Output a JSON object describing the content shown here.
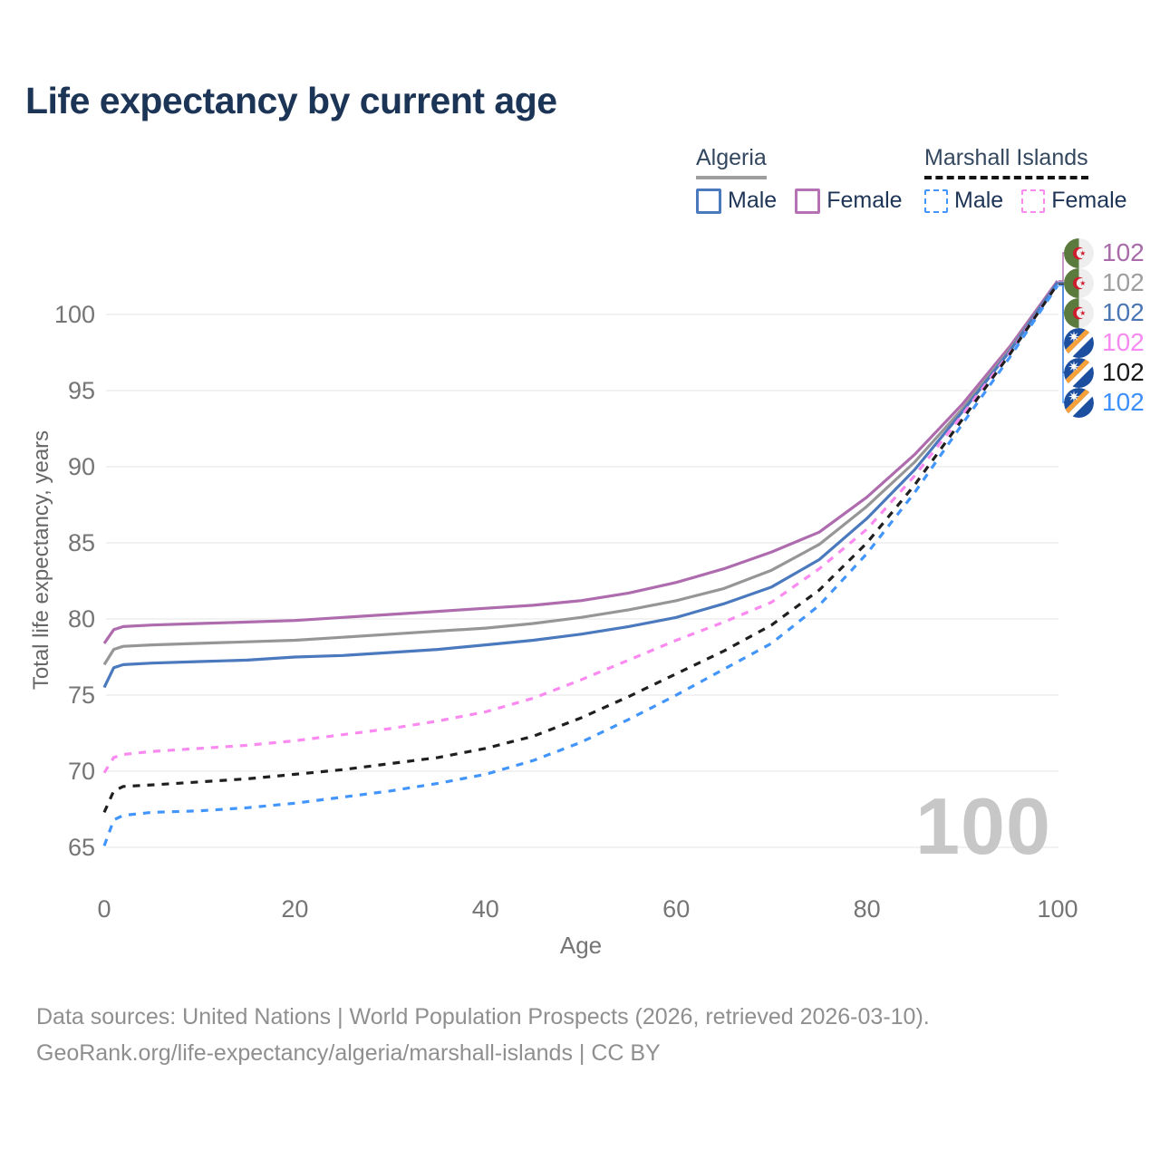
{
  "title": "Life expectancy by current age",
  "watermark": "100",
  "legend": {
    "groups": [
      {
        "label": "Algeria",
        "underline": "solid",
        "underline_color": "#9e9e9e",
        "items": [
          {
            "label": "Male",
            "color": "#4b79bd",
            "dashed": false
          },
          {
            "label": "Female",
            "color": "#b472b4",
            "dashed": false
          }
        ]
      },
      {
        "label": "Marshall Islands",
        "underline": "dashed",
        "underline_color": "#141414",
        "items": [
          {
            "label": "Male",
            "color": "#4195fc",
            "dashed": true
          },
          {
            "label": "Female",
            "color": "#fa8af0",
            "dashed": true
          }
        ]
      }
    ]
  },
  "chart_data": {
    "type": "line",
    "title": "Life expectancy by current age",
    "xlabel": "Age",
    "ylabel": "Total life expectancy, years",
    "xlim": [
      0,
      100
    ],
    "ylim": [
      64,
      102.5
    ],
    "x_ticks": [
      0,
      20,
      40,
      60,
      80,
      100
    ],
    "y_ticks": [
      65,
      70,
      75,
      80,
      85,
      90,
      95,
      100
    ],
    "grid": true,
    "legend_position": "top-right",
    "x": [
      0,
      1,
      2,
      5,
      10,
      15,
      20,
      25,
      30,
      35,
      40,
      45,
      50,
      55,
      60,
      65,
      70,
      75,
      80,
      85,
      90,
      95,
      100
    ],
    "series": [
      {
        "name": "Algeria Female",
        "country": "Algeria",
        "sex": "Female",
        "color": "#ae6cae",
        "label_color": "#a96ba9",
        "dashed": false,
        "flag": "algeria",
        "end_label": "102",
        "values": [
          78.4,
          79.3,
          79.5,
          79.6,
          79.7,
          79.8,
          79.9,
          80.1,
          80.3,
          80.5,
          80.7,
          80.9,
          81.2,
          81.7,
          82.4,
          83.3,
          84.4,
          85.7,
          88.0,
          90.8,
          94.1,
          97.9,
          102.2
        ]
      },
      {
        "name": "Algeria Both sexes",
        "country": "Algeria",
        "sex": "Both",
        "color": "#969696",
        "label_color": "#9e9e9e",
        "dashed": false,
        "flag": "algeria",
        "end_label": "102",
        "values": [
          77.0,
          78.0,
          78.2,
          78.3,
          78.4,
          78.5,
          78.6,
          78.8,
          79.0,
          79.2,
          79.4,
          79.7,
          80.1,
          80.6,
          81.2,
          82.0,
          83.2,
          84.9,
          87.4,
          90.3,
          93.8,
          97.7,
          102.1
        ]
      },
      {
        "name": "Algeria Male",
        "country": "Algeria",
        "sex": "Male",
        "color": "#4b79bd",
        "label_color": "#4a77b4",
        "dashed": false,
        "flag": "algeria",
        "end_label": "102",
        "values": [
          75.5,
          76.8,
          77.0,
          77.1,
          77.2,
          77.3,
          77.5,
          77.6,
          77.8,
          78.0,
          78.3,
          78.6,
          79.0,
          79.5,
          80.1,
          81.0,
          82.1,
          83.9,
          86.6,
          89.8,
          93.6,
          97.6,
          102.1
        ]
      },
      {
        "name": "Marshall Islands Female",
        "country": "Marshall Islands",
        "sex": "Female",
        "color": "#fa8af0",
        "label_color": "#f78af2",
        "dashed": true,
        "flag": "marshall",
        "end_label": "102",
        "values": [
          69.9,
          70.9,
          71.1,
          71.3,
          71.5,
          71.7,
          72.0,
          72.4,
          72.8,
          73.3,
          73.9,
          74.8,
          76.0,
          77.3,
          78.6,
          79.8,
          81.1,
          83.3,
          85.9,
          89.4,
          93.4,
          97.5,
          102.0
        ]
      },
      {
        "name": "Marshall Islands Both sexes",
        "country": "Marshall Islands",
        "sex": "Both",
        "color": "#1f1f1f",
        "label_color": "#1a1a1a",
        "dashed": true,
        "flag": "marshall",
        "end_label": "102",
        "values": [
          67.3,
          68.7,
          69.0,
          69.1,
          69.3,
          69.5,
          69.8,
          70.1,
          70.5,
          70.9,
          71.5,
          72.3,
          73.5,
          74.9,
          76.4,
          77.9,
          79.6,
          81.9,
          85.0,
          88.8,
          93.1,
          97.4,
          102.0
        ]
      },
      {
        "name": "Marshall Islands Male",
        "country": "Marshall Islands",
        "sex": "Male",
        "color": "#4195fc",
        "label_color": "#3d8ffa",
        "dashed": true,
        "flag": "marshall",
        "end_label": "102",
        "values": [
          65.1,
          66.8,
          67.1,
          67.3,
          67.4,
          67.6,
          67.9,
          68.3,
          68.7,
          69.2,
          69.8,
          70.7,
          71.9,
          73.4,
          75.0,
          76.7,
          78.4,
          80.9,
          84.3,
          88.3,
          92.8,
          97.2,
          101.9
        ]
      }
    ]
  },
  "flag_colors": {
    "algeria": {
      "green": "#5b7a3e",
      "white": "#eeeeee",
      "red": "#cf1b2e"
    },
    "marshall": {
      "blue": "#1d4fa1",
      "orange": "#f6a13a",
      "white": "#ffffff"
    }
  },
  "footer": {
    "line1": "Data sources: United Nations | World Population Prospects (2026, retrieved 2026-03-10).",
    "line2": "GeoRank.org/life-expectancy/algeria/marshall-islands | CC BY"
  }
}
